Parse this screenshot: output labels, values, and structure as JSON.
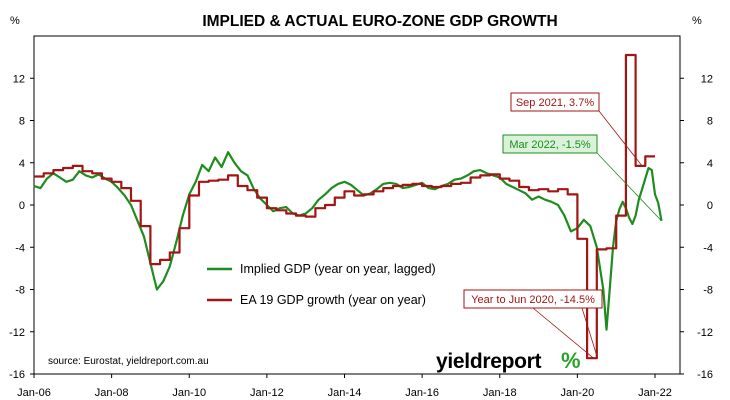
{
  "chart_data": {
    "type": "line",
    "title": "IMPLIED & ACTUAL EURO-ZONE GDP GROWTH",
    "left_unit": "%",
    "right_unit": "%",
    "ylim": [
      -16,
      16
    ],
    "y_ticks": [
      -16,
      -12,
      -8,
      -4,
      0,
      4,
      8,
      12
    ],
    "x_range": [
      "2006-01",
      "2022-01"
    ],
    "x_ticks": [
      {
        "date": "2006-01",
        "label": "Jan-06"
      },
      {
        "date": "2008-01",
        "label": "Jan-08"
      },
      {
        "date": "2010-01",
        "label": "Jan-10"
      },
      {
        "date": "2012-01",
        "label": "Jan-12"
      },
      {
        "date": "2014-01",
        "label": "Jan-14"
      },
      {
        "date": "2016-01",
        "label": "Jan-16"
      },
      {
        "date": "2018-01",
        "label": "Jan-18"
      },
      {
        "date": "2020-01",
        "label": "Jan-20"
      },
      {
        "date": "2022-01",
        "label": "Jan-22"
      }
    ],
    "grid": false,
    "legend_position": "center-left",
    "source": "source: Eurostat, yieldreport.com.au",
    "series": [
      {
        "name": "Implied GDP (year on year, lagged)",
        "color": "#1f8c1f",
        "style": "line",
        "points": [
          [
            "2006-01",
            1.8
          ],
          [
            "2006-03",
            1.6
          ],
          [
            "2006-05",
            2.5
          ],
          [
            "2006-07",
            3.0
          ],
          [
            "2006-09",
            2.6
          ],
          [
            "2006-11",
            2.2
          ],
          [
            "2007-01",
            2.4
          ],
          [
            "2007-03",
            3.2
          ],
          [
            "2007-05",
            2.8
          ],
          [
            "2007-07",
            2.6
          ],
          [
            "2007-09",
            2.9
          ],
          [
            "2007-11",
            2.5
          ],
          [
            "2008-01",
            2.2
          ],
          [
            "2008-03",
            1.6
          ],
          [
            "2008-05",
            0.9
          ],
          [
            "2008-07",
            0.0
          ],
          [
            "2008-09",
            -1.5
          ],
          [
            "2008-11",
            -3.0
          ],
          [
            "2009-01",
            -5.5
          ],
          [
            "2009-03",
            -8.0
          ],
          [
            "2009-05",
            -7.2
          ],
          [
            "2009-07",
            -5.8
          ],
          [
            "2009-09",
            -3.5
          ],
          [
            "2009-11",
            -1.0
          ],
          [
            "2010-01",
            1.0
          ],
          [
            "2010-03",
            2.2
          ],
          [
            "2010-05",
            3.8
          ],
          [
            "2010-07",
            3.2
          ],
          [
            "2010-09",
            4.5
          ],
          [
            "2010-11",
            3.6
          ],
          [
            "2011-01",
            5.0
          ],
          [
            "2011-03",
            4.0
          ],
          [
            "2011-05",
            3.2
          ],
          [
            "2011-07",
            2.8
          ],
          [
            "2011-09",
            1.5
          ],
          [
            "2011-11",
            0.6
          ],
          [
            "2012-01",
            0.0
          ],
          [
            "2012-03",
            -0.6
          ],
          [
            "2012-05",
            -0.3
          ],
          [
            "2012-07",
            -0.2
          ],
          [
            "2012-09",
            -0.8
          ],
          [
            "2012-11",
            -1.0
          ],
          [
            "2013-01",
            -0.8
          ],
          [
            "2013-03",
            -0.3
          ],
          [
            "2013-05",
            0.5
          ],
          [
            "2013-07",
            1.0
          ],
          [
            "2013-09",
            1.6
          ],
          [
            "2013-11",
            2.0
          ],
          [
            "2014-01",
            2.2
          ],
          [
            "2014-03",
            1.9
          ],
          [
            "2014-05",
            1.4
          ],
          [
            "2014-07",
            0.9
          ],
          [
            "2014-09",
            1.1
          ],
          [
            "2014-11",
            1.5
          ],
          [
            "2015-01",
            2.0
          ],
          [
            "2015-03",
            2.1
          ],
          [
            "2015-05",
            2.0
          ],
          [
            "2015-07",
            1.6
          ],
          [
            "2015-09",
            1.7
          ],
          [
            "2015-11",
            1.9
          ],
          [
            "2016-01",
            2.1
          ],
          [
            "2016-03",
            1.6
          ],
          [
            "2016-05",
            1.5
          ],
          [
            "2016-07",
            1.8
          ],
          [
            "2016-09",
            2.0
          ],
          [
            "2016-11",
            2.4
          ],
          [
            "2017-01",
            2.5
          ],
          [
            "2017-03",
            2.8
          ],
          [
            "2017-05",
            3.2
          ],
          [
            "2017-07",
            3.3
          ],
          [
            "2017-09",
            3.0
          ],
          [
            "2017-11",
            2.8
          ],
          [
            "2018-01",
            2.6
          ],
          [
            "2018-03",
            2.0
          ],
          [
            "2018-05",
            1.7
          ],
          [
            "2018-07",
            1.4
          ],
          [
            "2018-09",
            1.1
          ],
          [
            "2018-11",
            0.5
          ],
          [
            "2019-01",
            0.8
          ],
          [
            "2019-03",
            0.5
          ],
          [
            "2019-05",
            0.3
          ],
          [
            "2019-07",
            0.0
          ],
          [
            "2019-09",
            -1.0
          ],
          [
            "2019-11",
            -2.5
          ],
          [
            "2020-01",
            -2.2
          ],
          [
            "2020-03",
            -1.4
          ],
          [
            "2020-05",
            -2.0
          ],
          [
            "2020-07",
            -4.0
          ],
          [
            "2020-09",
            -8.0
          ],
          [
            "2020-10",
            -11.8
          ],
          [
            "2020-11",
            -8.0
          ],
          [
            "2020-12",
            -4.0
          ],
          [
            "2021-01",
            -1.5
          ],
          [
            "2021-02",
            -0.4
          ],
          [
            "2021-03",
            0.3
          ],
          [
            "2021-04",
            -0.3
          ],
          [
            "2021-05",
            -1.2
          ],
          [
            "2021-06",
            -1.8
          ],
          [
            "2021-07",
            -1.0
          ],
          [
            "2021-08",
            0.5
          ],
          [
            "2021-09",
            1.5
          ],
          [
            "2021-10",
            2.5
          ],
          [
            "2021-11",
            3.5
          ],
          [
            "2021-12",
            3.3
          ],
          [
            "2022-01",
            1.0
          ],
          [
            "2022-02",
            0.2
          ],
          [
            "2022-03",
            -1.5
          ]
        ]
      },
      {
        "name": "EA 19 GDP growth (year on year)",
        "color": "#a31515",
        "style": "step",
        "points": [
          [
            "2006-01",
            2.7
          ],
          [
            "2006-04",
            3.0
          ],
          [
            "2006-07",
            3.3
          ],
          [
            "2006-10",
            3.5
          ],
          [
            "2007-01",
            3.7
          ],
          [
            "2007-04",
            3.2
          ],
          [
            "2007-07",
            3.0
          ],
          [
            "2007-10",
            2.5
          ],
          [
            "2008-01",
            2.2
          ],
          [
            "2008-04",
            1.6
          ],
          [
            "2008-07",
            0.4
          ],
          [
            "2008-10",
            -2.0
          ],
          [
            "2009-01",
            -5.6
          ],
          [
            "2009-04",
            -5.2
          ],
          [
            "2009-07",
            -4.5
          ],
          [
            "2009-10",
            -2.2
          ],
          [
            "2010-01",
            0.9
          ],
          [
            "2010-04",
            2.2
          ],
          [
            "2010-07",
            2.3
          ],
          [
            "2010-10",
            2.4
          ],
          [
            "2011-01",
            2.8
          ],
          [
            "2011-04",
            1.8
          ],
          [
            "2011-07",
            1.4
          ],
          [
            "2011-10",
            0.7
          ],
          [
            "2012-01",
            -0.3
          ],
          [
            "2012-04",
            -0.5
          ],
          [
            "2012-07",
            -0.8
          ],
          [
            "2012-10",
            -1.0
          ],
          [
            "2013-01",
            -1.1
          ],
          [
            "2013-04",
            -0.3
          ],
          [
            "2013-07",
            0.0
          ],
          [
            "2013-10",
            0.7
          ],
          [
            "2014-01",
            1.3
          ],
          [
            "2014-04",
            0.9
          ],
          [
            "2014-07",
            1.0
          ],
          [
            "2014-10",
            1.3
          ],
          [
            "2015-01",
            1.6
          ],
          [
            "2015-04",
            1.8
          ],
          [
            "2015-07",
            1.9
          ],
          [
            "2015-10",
            2.0
          ],
          [
            "2016-01",
            1.8
          ],
          [
            "2016-04",
            1.7
          ],
          [
            "2016-07",
            1.8
          ],
          [
            "2016-10",
            2.0
          ],
          [
            "2017-01",
            2.1
          ],
          [
            "2017-04",
            2.6
          ],
          [
            "2017-07",
            2.8
          ],
          [
            "2017-10",
            2.9
          ],
          [
            "2018-01",
            2.5
          ],
          [
            "2018-04",
            2.3
          ],
          [
            "2018-07",
            1.7
          ],
          [
            "2018-10",
            1.4
          ],
          [
            "2019-01",
            1.5
          ],
          [
            "2019-04",
            1.3
          ],
          [
            "2019-07",
            1.5
          ],
          [
            "2019-10",
            1.0
          ],
          [
            "2020-01",
            -3.2
          ],
          [
            "2020-04",
            -14.5
          ],
          [
            "2020-07",
            -4.2
          ],
          [
            "2020-10",
            -4.1
          ],
          [
            "2021-01",
            -1.0
          ],
          [
            "2021-04",
            14.2
          ],
          [
            "2021-07",
            3.7
          ],
          [
            "2021-10",
            4.6
          ],
          [
            "2022-01",
            4.6
          ]
        ],
        "end": "2022-01"
      }
    ],
    "annotations": [
      {
        "text": "Sep 2021, 3.7%",
        "series": 1,
        "target": [
          "2021-09",
          3.7
        ],
        "color": "#a31515"
      },
      {
        "text": "Mar 2022, -1.5%",
        "series": 0,
        "target": [
          "2022-03",
          -1.5
        ],
        "color": "#1f8c1f"
      },
      {
        "text": "Year to Jun 2020, -14.5%",
        "series": 1,
        "target": [
          "2020-06",
          -14.5
        ],
        "color": "#a31515"
      }
    ]
  },
  "logo": {
    "text": "yieldreport",
    "pct": "%"
  }
}
